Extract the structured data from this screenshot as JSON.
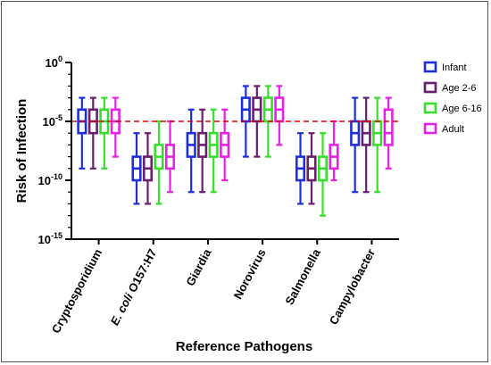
{
  "chart_data": {
    "type": "boxplot",
    "xlabel": "Reference Pathogens",
    "ylabel": "Risk of Infection",
    "y_scale": "log",
    "ylim": [
      1e-15,
      1
    ],
    "y_ticks": [
      {
        "base": "10",
        "exp": "0"
      },
      {
        "base": "10",
        "exp": "-5"
      },
      {
        "base": "10",
        "exp": "-10"
      },
      {
        "base": "10",
        "exp": "-15"
      }
    ],
    "reference_line": {
      "y": 1e-05,
      "style": "dashed",
      "color": "#e00000"
    },
    "legend_position": "right",
    "categories": [
      {
        "label": "Cryptosporidium",
        "italic": ""
      },
      {
        "label": " O157:H7",
        "italic": "E. coli"
      },
      {
        "label": "Giardia",
        "italic": ""
      },
      {
        "label": "Norovirus",
        "italic": ""
      },
      {
        "label": "Salmonella",
        "italic": ""
      },
      {
        "label": "Campylobacter",
        "italic": ""
      }
    ],
    "series": [
      {
        "name": "Infant",
        "color": "#1c2fe0",
        "boxes": [
          {
            "min": 1e-09,
            "q1": 1e-06,
            "median": 1e-05,
            "q3": 0.0001,
            "max": 0.001
          },
          {
            "min": 1e-12,
            "q1": 1e-10,
            "median": 1e-09,
            "q3": 1e-08,
            "max": 1e-06
          },
          {
            "min": 1e-11,
            "q1": 1e-08,
            "median": 1e-07,
            "q3": 1e-06,
            "max": 0.0001
          },
          {
            "min": 1e-08,
            "q1": 1e-05,
            "median": 0.0001,
            "q3": 0.001,
            "max": 0.01
          },
          {
            "min": 1e-12,
            "q1": 1e-10,
            "median": 1e-09,
            "q3": 1e-08,
            "max": 1e-06
          },
          {
            "min": 1e-11,
            "q1": 1e-07,
            "median": 1e-06,
            "q3": 1e-05,
            "max": 0.001
          }
        ]
      },
      {
        "name": "Age 2-6",
        "color": "#6b1d6e",
        "boxes": [
          {
            "min": 1e-09,
            "q1": 1e-06,
            "median": 1e-05,
            "q3": 0.0001,
            "max": 0.001
          },
          {
            "min": 1e-12,
            "q1": 1e-10,
            "median": 1e-09,
            "q3": 1e-08,
            "max": 1e-06
          },
          {
            "min": 1e-11,
            "q1": 1e-08,
            "median": 1e-07,
            "q3": 1e-06,
            "max": 0.0001
          },
          {
            "min": 1e-08,
            "q1": 1e-05,
            "median": 0.0001,
            "q3": 0.001,
            "max": 0.01
          },
          {
            "min": 1e-12,
            "q1": 1e-10,
            "median": 1e-09,
            "q3": 1e-08,
            "max": 1e-06
          },
          {
            "min": 1e-11,
            "q1": 1e-07,
            "median": 1e-06,
            "q3": 1e-05,
            "max": 0.001
          }
        ]
      },
      {
        "name": "Age 6-16",
        "color": "#36e02a",
        "boxes": [
          {
            "min": 1e-09,
            "q1": 1e-06,
            "median": 1e-05,
            "q3": 0.0001,
            "max": 0.001
          },
          {
            "min": 1e-12,
            "q1": 1e-09,
            "median": 1e-08,
            "q3": 1e-07,
            "max": 1e-05
          },
          {
            "min": 1e-11,
            "q1": 1e-08,
            "median": 1e-07,
            "q3": 1e-06,
            "max": 0.0001
          },
          {
            "min": 1e-08,
            "q1": 1e-05,
            "median": 0.0001,
            "q3": 0.001,
            "max": 0.01
          },
          {
            "min": 1e-13,
            "q1": 1e-10,
            "median": 1e-09,
            "q3": 1e-08,
            "max": 1e-06
          },
          {
            "min": 1e-11,
            "q1": 1e-07,
            "median": 1e-06,
            "q3": 1e-05,
            "max": 0.001
          }
        ]
      },
      {
        "name": "Adult",
        "color": "#e621e6",
        "boxes": [
          {
            "min": 1e-08,
            "q1": 1e-06,
            "median": 1e-05,
            "q3": 0.0001,
            "max": 0.001
          },
          {
            "min": 1e-11,
            "q1": 1e-09,
            "median": 1e-08,
            "q3": 1e-07,
            "max": 1e-05
          },
          {
            "min": 1e-10,
            "q1": 1e-08,
            "median": 1e-07,
            "q3": 1e-06,
            "max": 0.0001
          },
          {
            "min": 1e-07,
            "q1": 1e-05,
            "median": 0.0001,
            "q3": 0.001,
            "max": 0.01
          },
          {
            "min": 1e-10,
            "q1": 1e-09,
            "median": 1e-08,
            "q3": 1e-07,
            "max": 1e-05
          },
          {
            "min": 1e-09,
            "q1": 1e-07,
            "median": 1e-06,
            "q3": 0.0001,
            "max": 0.001
          }
        ]
      }
    ]
  }
}
